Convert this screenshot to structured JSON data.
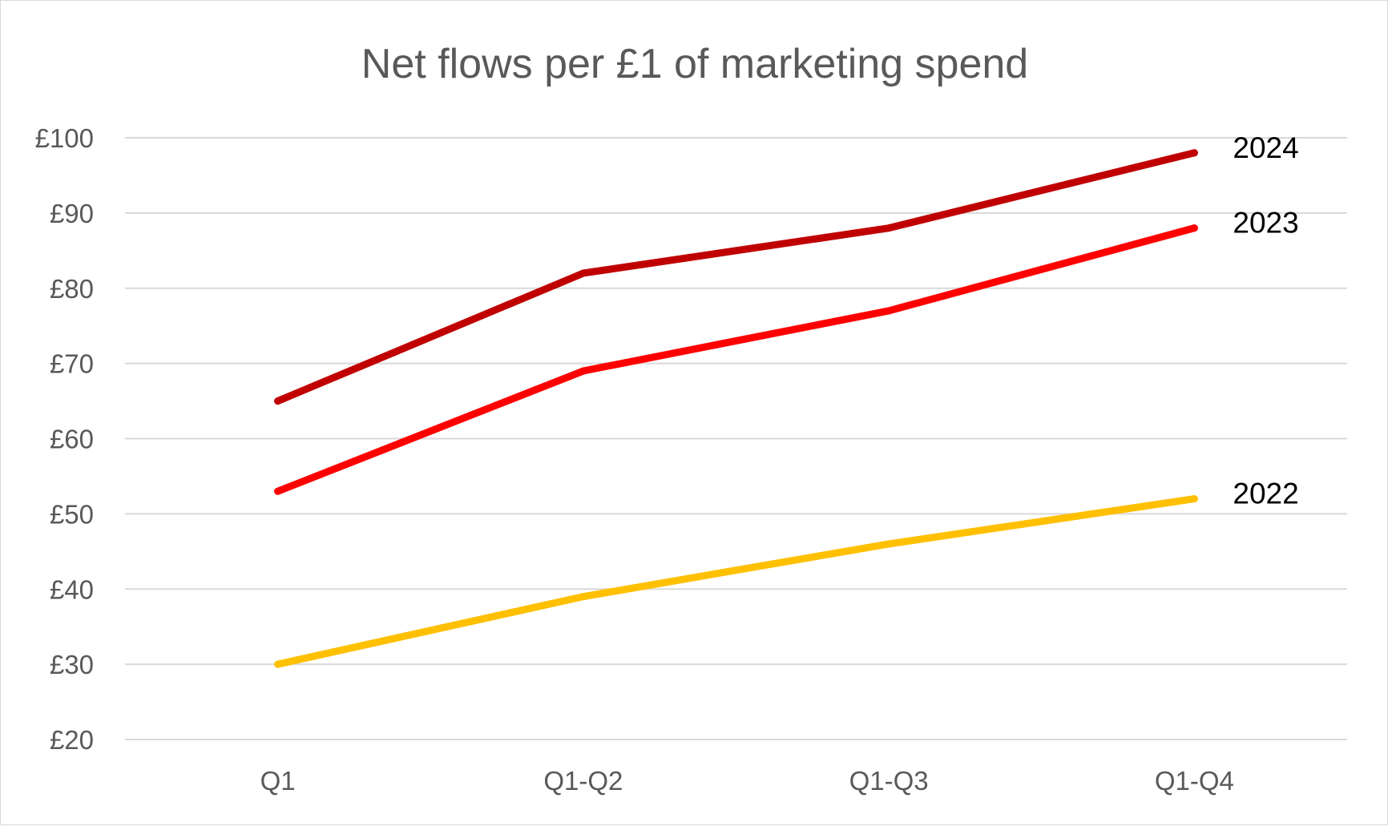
{
  "chart_data": {
    "type": "line",
    "title": "Net flows per £1 of marketing spend",
    "xlabel": "",
    "ylabel": "",
    "categories": [
      "Q1",
      "Q1-Q2",
      "Q1-Q3",
      "Q1-Q4"
    ],
    "yticks": [
      "£20",
      "£30",
      "£40",
      "£50",
      "£60",
      "£70",
      "£80",
      "£90",
      "£100"
    ],
    "ylim": [
      20,
      100
    ],
    "grid": true,
    "legend": "none (direct labels at line ends)",
    "series": [
      {
        "name": "2024",
        "values": [
          65,
          82,
          88,
          98
        ],
        "color": "#c00000"
      },
      {
        "name": "2023",
        "values": [
          53,
          69,
          77,
          88
        ],
        "color": "#ff0000"
      },
      {
        "name": "2022",
        "values": [
          30,
          39,
          46,
          52
        ],
        "color": "#ffc000"
      }
    ]
  }
}
